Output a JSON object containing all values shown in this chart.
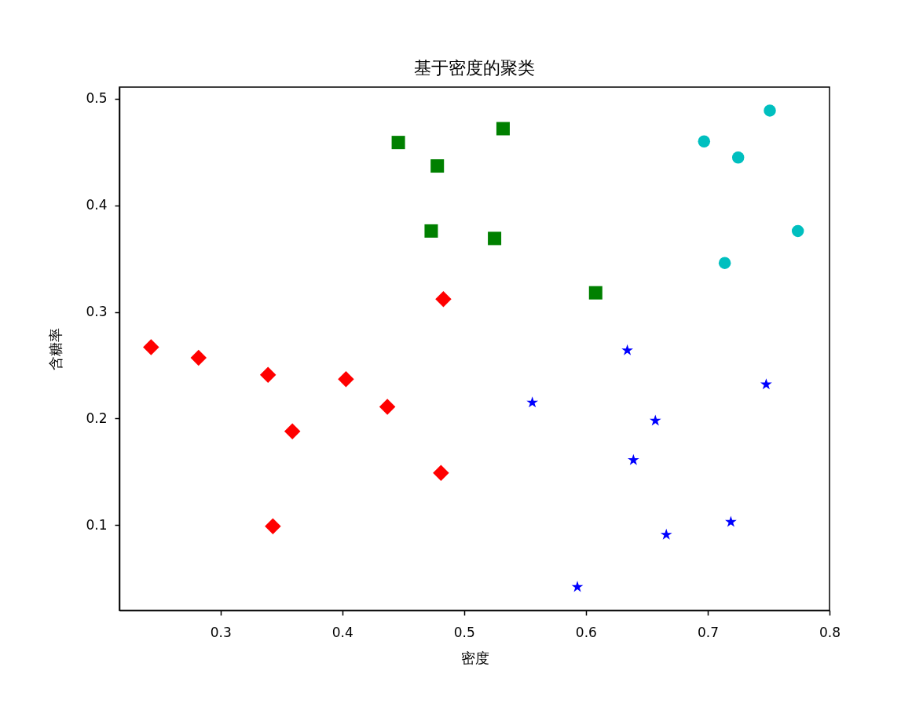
{
  "chart_data": {
    "type": "scatter",
    "title": "基于密度的聚类",
    "xlabel": "密度",
    "ylabel": "含糖率",
    "xlim": [
      0.217,
      0.8
    ],
    "ylim": [
      0.02,
      0.511
    ],
    "xticks": [
      0.3,
      0.4,
      0.5,
      0.6,
      0.7,
      0.8
    ],
    "yticks": [
      0.1,
      0.2,
      0.3,
      0.4,
      0.5
    ],
    "series": [
      {
        "color": "#ff0000",
        "marker": "diamond",
        "x": [
          0.243,
          0.282,
          0.339,
          0.403,
          0.437,
          0.359,
          0.481,
          0.343,
          0.483
        ],
        "values": [
          0.267,
          0.257,
          0.241,
          0.237,
          0.211,
          0.188,
          0.149,
          0.099,
          0.312
        ]
      },
      {
        "color": "#008000",
        "marker": "square",
        "x": [
          0.446,
          0.478,
          0.532,
          0.473,
          0.525,
          0.608
        ],
        "values": [
          0.459,
          0.437,
          0.472,
          0.376,
          0.369,
          0.318
        ]
      },
      {
        "color": "#00bfbf",
        "marker": "circle",
        "x": [
          0.697,
          0.725,
          0.751,
          0.774,
          0.714
        ],
        "values": [
          0.46,
          0.445,
          0.489,
          0.376,
          0.346
        ]
      },
      {
        "color": "#0000ff",
        "marker": "star",
        "x": [
          0.634,
          0.556,
          0.657,
          0.639,
          0.748,
          0.719,
          0.666,
          0.593
        ],
        "values": [
          0.264,
          0.215,
          0.198,
          0.161,
          0.232,
          0.103,
          0.091,
          0.042
        ]
      }
    ]
  }
}
